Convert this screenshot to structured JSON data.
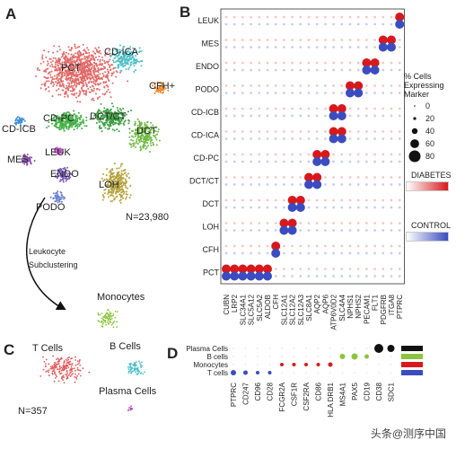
{
  "panels": {
    "a": "A",
    "b": "B",
    "c": "C",
    "d": "D"
  },
  "panel_a": {
    "clusters": [
      {
        "name": "PCT",
        "color": "#e06a68"
      },
      {
        "name": "CD-ICA",
        "color": "#4bbfc8"
      },
      {
        "name": "CFH+",
        "color": "#e8882e"
      },
      {
        "name": "CD-PC",
        "color": "#46b14a"
      },
      {
        "name": "DCT/CT",
        "color": "#3e9f43"
      },
      {
        "name": "DCT",
        "color": "#6fb944"
      },
      {
        "name": "CD-ICB",
        "color": "#3d8fd6"
      },
      {
        "name": "MES",
        "color": "#8a4fb0"
      },
      {
        "name": "LEUK",
        "color": "#b74fc0"
      },
      {
        "name": "ENDO",
        "color": "#7b5cc0"
      },
      {
        "name": "LOH",
        "color": "#b5a23a"
      },
      {
        "name": "PODO",
        "color": "#6a7fd0"
      }
    ],
    "n_label": "N=23,980",
    "arrow_label_1": "Leukocyte",
    "arrow_label_2": "Subclustering"
  },
  "panel_b": {
    "rows": [
      "LEUK",
      "MES",
      "ENDO",
      "PODO",
      "CD-ICB",
      "CD-ICA",
      "CD-PC",
      "DCT/CT",
      "DCT",
      "LOH",
      "CFH",
      "PCT"
    ],
    "genes": [
      "CUBN",
      "LRP2",
      "SLC34A1",
      "SLC5A12",
      "SLC5A2",
      "ALDOB",
      "CFH",
      "SLC12A1",
      "SLC12A2",
      "SLC12A3",
      "SLC8A1",
      "AQP2",
      "AQP6",
      "ATP6V0D2",
      "SLC4A4",
      "NPHS1",
      "NPHS2",
      "PECAM1",
      "FLT1",
      "PDGFRB",
      "ITGA8",
      "PTPRC"
    ],
    "legend_title_1": "% Cells",
    "legend_title_2": "Expressing",
    "legend_title_3": "Marker",
    "size_values": [
      0,
      20,
      40,
      60,
      80
    ],
    "diabetes_label": "DIABETES",
    "control_label": "CONTROL",
    "diabetes_color": "#d7191c",
    "control_color": "#3b4cc0"
  },
  "panel_c": {
    "t_cells": "T Cells",
    "b_cells": "B Cells",
    "monocytes": "Monocytes",
    "plasma_cells": "Plasma Cells",
    "n_label": "N=357",
    "t_color": "#e05a5a",
    "b_color": "#4bbfc8",
    "mono_color": "#8bc43f",
    "plasma_color": "#b04fc0"
  },
  "panel_d": {
    "rows": [
      "Plasma Cells",
      "B cells",
      "Monocytes",
      "T cells"
    ],
    "genes": [
      "PTPRC",
      "CD247",
      "CD96",
      "CD28",
      "FCGR2A",
      "CSF1R",
      "CSF2RA",
      "CD86",
      "HLA DRB1",
      "MS4A1",
      "PAX5",
      "CD19",
      "CD38",
      "SDC1"
    ],
    "row_colors": [
      "#111111",
      "#8bc43f",
      "#d7191c",
      "#3b4cc0"
    ]
  },
  "watermark": "头条@测序中国"
}
